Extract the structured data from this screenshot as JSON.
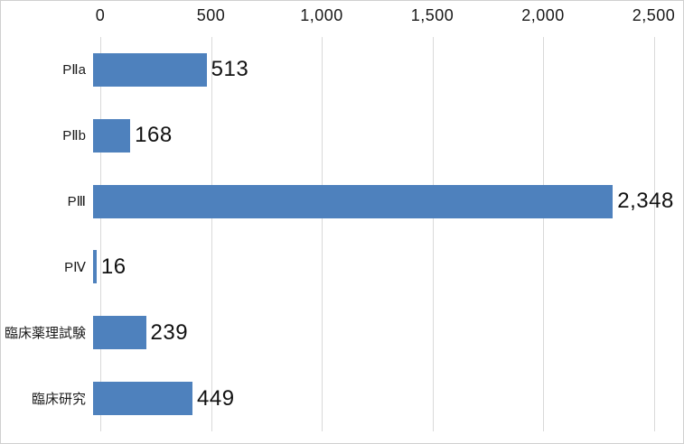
{
  "chart_data": {
    "type": "bar",
    "orientation": "horizontal",
    "title": "",
    "xlabel": "",
    "ylabel": "",
    "categories": [
      "PⅡa",
      "PⅡb",
      "PⅢ",
      "PⅣ",
      "臨床薬理試験",
      "臨床研究"
    ],
    "values": [
      513,
      168,
      2348,
      16,
      239,
      449
    ],
    "data_labels": [
      "513",
      "168",
      "2,348",
      "16",
      "239",
      "449"
    ],
    "xlim": [
      0,
      2500
    ],
    "ticks": [
      0,
      500,
      1000,
      1500,
      2000,
      2500
    ],
    "tick_labels": [
      "0",
      "500",
      "1,000",
      "1,500",
      "2,000",
      "2,500"
    ],
    "axis_position": "top",
    "grid": true,
    "legend": "none",
    "bar_color": "#4e81bd",
    "gridline_color": "#d9d9d9",
    "text_color": "#1a1a1a",
    "border_color": "#d0d0d0"
  },
  "layout_note": ""
}
